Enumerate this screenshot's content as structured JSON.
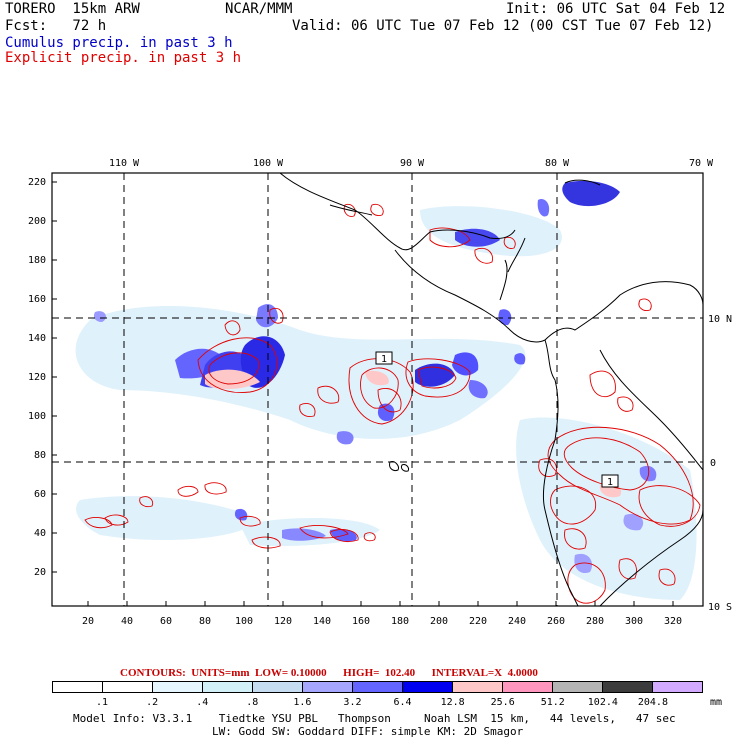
{
  "header": {
    "model": "TORERO  15km ARW",
    "center": "NCAR/MMM",
    "init": "Init: 06 UTC Sat 04 Feb 12",
    "fcst": "Fcst:   72 h",
    "valid": "Valid: 06 UTC Tue 07 Feb 12 (00 CST Tue 07 Feb 12)",
    "cumulus": "Cumulus precip. in past 3 h",
    "explicit": "Explicit precip. in past 3 h"
  },
  "map": {
    "top_lon_labels": [
      "110 W",
      "100 W",
      "90 W",
      "80 W",
      "70 W"
    ],
    "right_lat_labels": [
      "10 N",
      "0",
      "10 S"
    ],
    "left_ticks": [
      "220",
      "200",
      "180",
      "160",
      "140",
      "120",
      "100",
      "80",
      "60",
      "40",
      "20"
    ],
    "bottom_ticks": [
      "20",
      "40",
      "60",
      "80",
      "100",
      "120",
      "140",
      "160",
      "180",
      "200",
      "220",
      "240",
      "260",
      "280",
      "300",
      "320"
    ],
    "contour_labels": [
      "1",
      "1"
    ],
    "colors": {
      "cumulus": "#3d3dff",
      "explicit": "#e00000",
      "coast": "#000000"
    }
  },
  "contours_line": "CONTOURS:  UNITS=mm  LOW= 0.10000      HIGH=  102.40      INTERVAL=X  4.0000",
  "legend": {
    "labels": [
      ".1",
      ".2",
      ".4",
      ".8",
      "1.6",
      "3.2",
      "6.4",
      "12.8",
      "25.6",
      "51.2",
      "102.4",
      "204.8"
    ],
    "unit": "mm",
    "colors": [
      "#ffffff",
      "#ffffff",
      "#e6f6ff",
      "#d2f0f8",
      "#c6dcf0",
      "#a6a6ff",
      "#6464ff",
      "#0000f0",
      "#ffc8c8",
      "#ff96be",
      "#b4b4b4",
      "#3c3c3c",
      "#d2aaff"
    ]
  },
  "footer": {
    "line1": "Model Info: V3.3.1    Tiedtke YSU PBL   Thompson     Noah LSM  15 km,   44 levels,   47 sec",
    "line2": "LW: Godd SW: Goddard DIFF: simple KM: 2D Smagor"
  }
}
